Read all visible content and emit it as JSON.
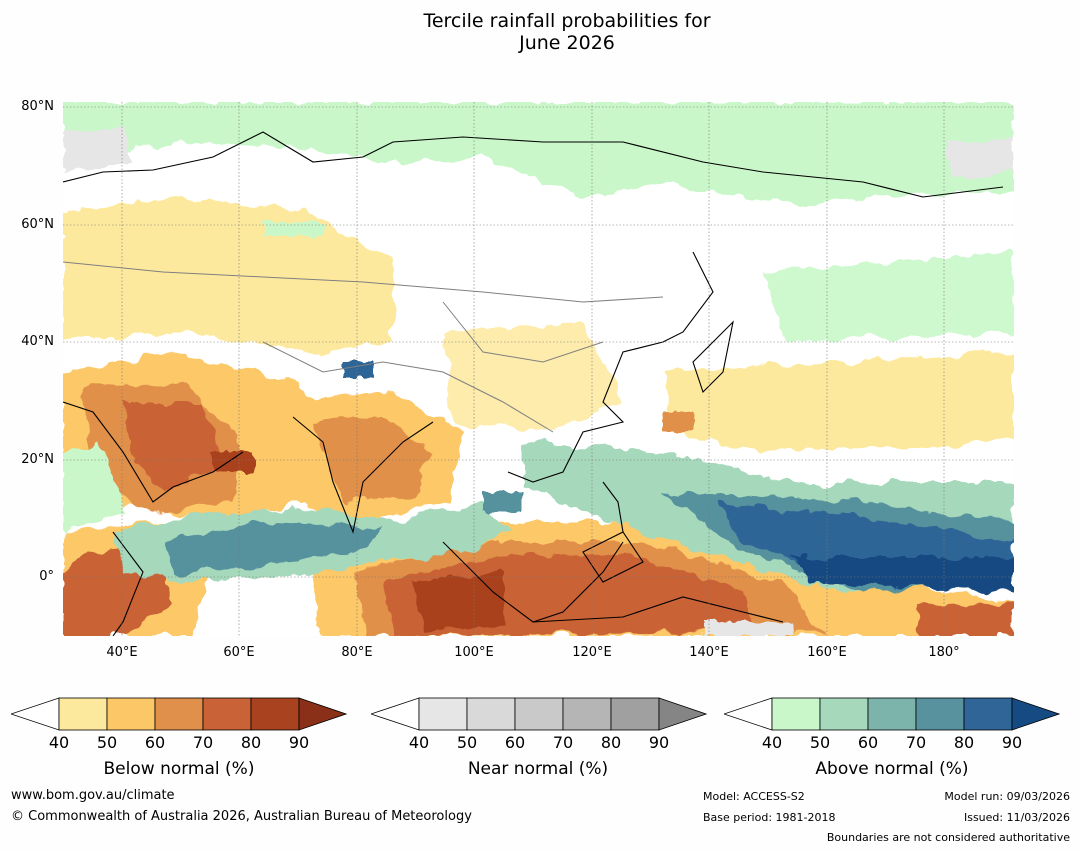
{
  "title": {
    "line1": "Tercile rainfall probabilities for",
    "line2": "June 2026"
  },
  "map": {
    "latitude_labels": [
      "80°N",
      "60°N",
      "40°N",
      "20°N",
      "0°"
    ],
    "longitude_labels": [
      "40°E",
      "60°E",
      "80°E",
      "100°E",
      "120°E",
      "140°E",
      "160°E",
      "180°"
    ],
    "lon_range": [
      30,
      192
    ],
    "lat_range": [
      -10,
      81
    ]
  },
  "legends": [
    {
      "title": "Below normal (%)",
      "ticks": [
        "40",
        "50",
        "60",
        "70",
        "80",
        "90"
      ],
      "colors": [
        "#ffffff",
        "#fde99d",
        "#fcc867",
        "#e0904a",
        "#c96236",
        "#a9431f",
        "#8a2f18"
      ]
    },
    {
      "title": "Near normal (%)",
      "ticks": [
        "40",
        "50",
        "60",
        "70",
        "80",
        "90"
      ],
      "colors": [
        "#ffffff",
        "#e6e6e6",
        "#d9d9d9",
        "#c9c9c9",
        "#b5b5b5",
        "#a0a0a0",
        "#858585"
      ]
    },
    {
      "title": "Above normal (%)",
      "ticks": [
        "40",
        "50",
        "60",
        "70",
        "80",
        "90"
      ],
      "colors": [
        "#ffffff",
        "#c9f7c9",
        "#a6d8bc",
        "#7cb4ac",
        "#57929e",
        "#2f6597",
        "#154a82"
      ]
    }
  ],
  "footer": {
    "website": "www.bom.gov.au/climate",
    "copyright": "© Commonwealth of Australia 2026, Australian Bureau of Meteorology",
    "model": "Model: ACCESS-S2",
    "base_period": "Base period: 1981-2018",
    "model_run": "Model run: 09/03/2026",
    "issued": "Issued: 11/03/2026",
    "boundaries": "Boundaries are not considered authoritative"
  }
}
